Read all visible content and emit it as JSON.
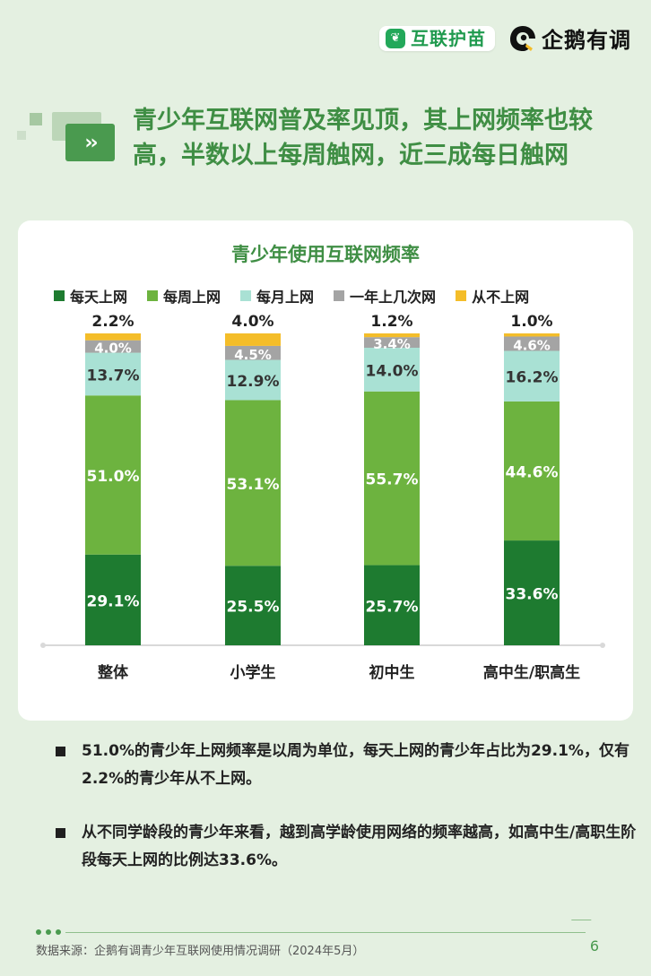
{
  "header": {
    "logo1_text": "互联护苗",
    "logo2_text": "企鹅有调"
  },
  "headline": "青少年互联网普及率见顶，其上网频率也较高，半数以上每周触网，近三成每日触网",
  "colors": {
    "daily": "#1e7b30",
    "weekly": "#6db33f",
    "monthly": "#a9e1d4",
    "yearly": "#a4a4a4",
    "never": "#f4bd29",
    "accent": "#3f8e44"
  },
  "chart_data": {
    "type": "bar",
    "stacked": true,
    "title": "青少年使用互联网频率",
    "categories": [
      "整体",
      "小学生",
      "初中生",
      "高中生/职高生"
    ],
    "series": [
      {
        "name": "每天上网",
        "values": [
          29.1,
          25.5,
          25.7,
          33.6
        ]
      },
      {
        "name": "每周上网",
        "values": [
          51.0,
          53.1,
          55.7,
          44.6
        ]
      },
      {
        "name": "每月上网",
        "values": [
          13.7,
          12.9,
          14.0,
          16.2
        ]
      },
      {
        "name": "一年上几次网",
        "values": [
          4.0,
          4.5,
          3.4,
          4.6
        ]
      },
      {
        "name": "从不上网",
        "values": [
          2.2,
          4.0,
          1.2,
          1.0
        ]
      }
    ],
    "value_labels": [
      [
        "29.1%",
        "51.0%",
        "13.7%",
        "4.0%",
        "2.2%"
      ],
      [
        "25.5%",
        "53.1%",
        "12.9%",
        "4.5%",
        "4.0%"
      ],
      [
        "25.7%",
        "55.7%",
        "14.0%",
        "3.4%",
        "1.2%"
      ],
      [
        "33.6%",
        "44.6%",
        "16.2%",
        "4.6%",
        "1.0%"
      ]
    ],
    "ylim": [
      0,
      100
    ],
    "legend_position": "top",
    "grid": false
  },
  "notes": [
    "51.0%的青少年上网频率是以周为单位，每天上网的青少年占比为29.1%，仅有2.2%的青少年从不上网。",
    "从不同学龄段的青少年来看，越到高学龄使用网络的频率越高，如高中生/高职生阶段每天上网的比例达33.6%。"
  ],
  "footer": {
    "source": "数据来源：企鹅有调青少年互联网使用情况调研（2024年5月）",
    "page": "6"
  }
}
